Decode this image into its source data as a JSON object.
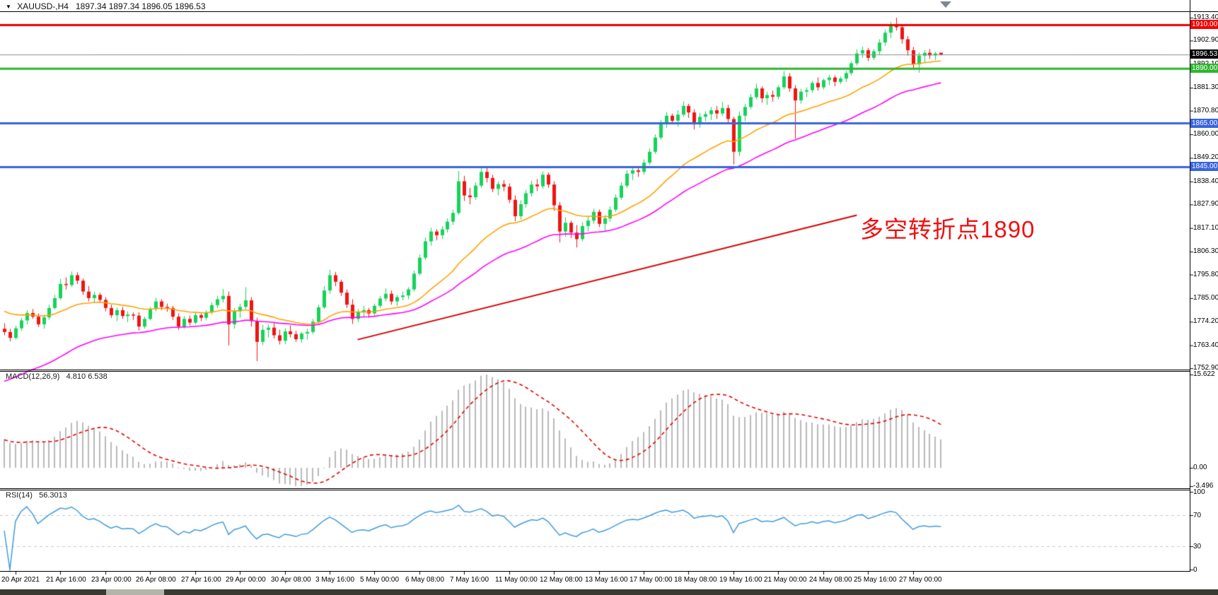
{
  "header": {
    "symbol": "XAUUSD-,H4",
    "ohlc": {
      "open": "1897.34",
      "high": "1897.34",
      "low": "1896.05",
      "close": "1896.53"
    },
    "ohlc_text": "1897.34 1897.34 1896.05 1896.53"
  },
  "colors": {
    "up_candle": "#16d35a",
    "down_candle": "#f01414",
    "ma_fast": "#ffa200",
    "ma_slow": "#ff00ff",
    "trendline": "#d40000",
    "hline_red": "#f00000",
    "hline_green": "#2eb52e",
    "hline_blue": "#3a64dd",
    "current_price_line": "#8a8a8a",
    "current_price_label_bg": "#000000",
    "macd_bars": "#b9b9b9",
    "macd_signal": "#e60000",
    "rsi_line": "#3f9bde",
    "rsi_levels": "#c8c8c8",
    "text": "#000000",
    "annotation": "#f01010"
  },
  "chart_data": {
    "type": "candlestick",
    "symbol": "XAUUSD-",
    "timeframe": "H4",
    "ohlc_format": [
      "open",
      "high",
      "low",
      "close"
    ],
    "ylim": [
      1752.3,
      1916.3
    ],
    "grid": false,
    "candles": [
      [
        1771.0,
        1773.5,
        1768.0,
        1769.5
      ],
      [
        1769.5,
        1771.0,
        1765.2,
        1766.8
      ],
      [
        1766.8,
        1772.4,
        1766.0,
        1771.2
      ],
      [
        1771.2,
        1776.0,
        1770.0,
        1774.8
      ],
      [
        1774.8,
        1779.5,
        1773.0,
        1778.2
      ],
      [
        1778.2,
        1780.0,
        1775.5,
        1776.5
      ],
      [
        1776.5,
        1778.0,
        1771.8,
        1773.0
      ],
      [
        1773.0,
        1777.5,
        1771.0,
        1776.2
      ],
      [
        1776.2,
        1782.0,
        1775.0,
        1780.5
      ],
      [
        1780.5,
        1786.5,
        1779.8,
        1785.0
      ],
      [
        1785.0,
        1793.8,
        1784.2,
        1791.5
      ],
      [
        1791.5,
        1794.5,
        1789.0,
        1791.0
      ],
      [
        1791.0,
        1797.2,
        1790.0,
        1795.5
      ],
      [
        1795.5,
        1796.8,
        1791.5,
        1793.0
      ],
      [
        1793.0,
        1794.0,
        1786.5,
        1788.0
      ],
      [
        1788.0,
        1790.5,
        1783.5,
        1785.0
      ],
      [
        1785.0,
        1788.0,
        1782.8,
        1786.5
      ],
      [
        1786.5,
        1787.5,
        1783.0,
        1784.2
      ],
      [
        1784.2,
        1785.5,
        1779.0,
        1780.5
      ],
      [
        1780.5,
        1782.0,
        1776.0,
        1777.2
      ],
      [
        1777.2,
        1780.8,
        1774.5,
        1779.5
      ],
      [
        1779.5,
        1781.0,
        1775.5,
        1776.8
      ],
      [
        1776.8,
        1779.0,
        1774.0,
        1777.5
      ],
      [
        1777.5,
        1778.5,
        1775.0,
        1777.0
      ],
      [
        1777.0,
        1778.5,
        1770.2,
        1772.0
      ],
      [
        1772.0,
        1776.5,
        1771.0,
        1775.5
      ],
      [
        1775.5,
        1781.0,
        1774.8,
        1780.0
      ],
      [
        1780.0,
        1785.2,
        1779.0,
        1783.5
      ],
      [
        1783.5,
        1784.5,
        1779.5,
        1781.0
      ],
      [
        1781.0,
        1782.5,
        1778.8,
        1780.5
      ],
      [
        1780.5,
        1781.5,
        1775.0,
        1776.5
      ],
      [
        1776.5,
        1778.0,
        1770.5,
        1772.0
      ],
      [
        1772.0,
        1776.8,
        1771.0,
        1775.5
      ],
      [
        1775.5,
        1777.0,
        1772.5,
        1773.8
      ],
      [
        1773.8,
        1778.5,
        1773.0,
        1777.2
      ],
      [
        1777.2,
        1778.0,
        1774.5,
        1776.0
      ],
      [
        1776.0,
        1779.5,
        1774.8,
        1778.5
      ],
      [
        1778.5,
        1783.0,
        1777.5,
        1781.8
      ],
      [
        1781.8,
        1786.0,
        1780.5,
        1784.5
      ],
      [
        1784.5,
        1789.2,
        1783.0,
        1786.0
      ],
      [
        1786.0,
        1788.0,
        1763.4,
        1773.0
      ],
      [
        1773.0,
        1780.5,
        1771.0,
        1779.0
      ],
      [
        1779.0,
        1782.5,
        1776.0,
        1781.0
      ],
      [
        1781.0,
        1790.0,
        1780.0,
        1784.0
      ],
      [
        1784.0,
        1785.5,
        1772.0,
        1774.5
      ],
      [
        1774.5,
        1776.0,
        1756.2,
        1765.0
      ],
      [
        1765.0,
        1772.8,
        1763.5,
        1770.5
      ],
      [
        1770.5,
        1773.0,
        1767.0,
        1771.5
      ],
      [
        1771.5,
        1774.0,
        1766.5,
        1768.0
      ],
      [
        1768.0,
        1770.5,
        1763.8,
        1765.5
      ],
      [
        1765.5,
        1771.2,
        1764.0,
        1769.8
      ],
      [
        1769.8,
        1772.5,
        1767.0,
        1768.5
      ],
      [
        1768.5,
        1770.0,
        1765.0,
        1766.2
      ],
      [
        1766.2,
        1769.5,
        1764.5,
        1768.8
      ],
      [
        1768.8,
        1771.0,
        1766.0,
        1769.5
      ],
      [
        1769.5,
        1775.5,
        1768.5,
        1774.2
      ],
      [
        1774.2,
        1782.0,
        1773.5,
        1780.8
      ],
      [
        1780.8,
        1790.5,
        1780.0,
        1788.5
      ],
      [
        1788.5,
        1798.0,
        1787.0,
        1795.5
      ],
      [
        1795.5,
        1797.0,
        1790.5,
        1792.5
      ],
      [
        1792.5,
        1793.5,
        1786.0,
        1787.5
      ],
      [
        1787.5,
        1789.0,
        1780.5,
        1782.0
      ],
      [
        1782.0,
        1784.5,
        1773.2,
        1775.5
      ],
      [
        1775.5,
        1780.0,
        1774.0,
        1778.8
      ],
      [
        1778.8,
        1781.5,
        1776.5,
        1779.5
      ],
      [
        1779.5,
        1780.5,
        1776.0,
        1778.0
      ],
      [
        1778.0,
        1782.5,
        1777.0,
        1781.5
      ],
      [
        1781.5,
        1786.0,
        1780.5,
        1784.8
      ],
      [
        1784.8,
        1789.5,
        1783.5,
        1787.0
      ],
      [
        1787.0,
        1788.5,
        1782.0,
        1783.5
      ],
      [
        1783.5,
        1786.5,
        1781.5,
        1785.5
      ],
      [
        1785.5,
        1788.0,
        1784.0,
        1786.2
      ],
      [
        1786.2,
        1790.0,
        1784.5,
        1789.0
      ],
      [
        1789.0,
        1797.5,
        1788.0,
        1796.2
      ],
      [
        1796.2,
        1805.0,
        1795.5,
        1803.5
      ],
      [
        1803.5,
        1812.8,
        1802.5,
        1811.0
      ],
      [
        1811.0,
        1817.2,
        1809.0,
        1815.5
      ],
      [
        1815.5,
        1816.5,
        1811.5,
        1813.8
      ],
      [
        1813.8,
        1818.0,
        1812.0,
        1816.5
      ],
      [
        1816.5,
        1821.5,
        1815.0,
        1820.0
      ],
      [
        1820.0,
        1825.5,
        1818.5,
        1824.0
      ],
      [
        1824.0,
        1843.2,
        1823.0,
        1838.5
      ],
      [
        1838.5,
        1841.0,
        1829.5,
        1832.0
      ],
      [
        1832.0,
        1835.5,
        1828.0,
        1831.2
      ],
      [
        1831.2,
        1838.0,
        1830.0,
        1836.5
      ],
      [
        1836.5,
        1845.0,
        1835.5,
        1842.8
      ],
      [
        1842.8,
        1844.5,
        1838.0,
        1840.0
      ],
      [
        1840.0,
        1841.5,
        1833.5,
        1835.0
      ],
      [
        1835.0,
        1838.5,
        1832.0,
        1837.2
      ],
      [
        1837.2,
        1839.0,
        1834.0,
        1836.0
      ],
      [
        1836.0,
        1837.5,
        1828.5,
        1830.0
      ],
      [
        1830.0,
        1832.0,
        1820.2,
        1822.5
      ],
      [
        1822.5,
        1829.8,
        1821.0,
        1828.0
      ],
      [
        1828.0,
        1834.5,
        1826.5,
        1833.0
      ],
      [
        1833.0,
        1838.8,
        1831.5,
        1837.0
      ],
      [
        1837.0,
        1839.5,
        1834.0,
        1836.2
      ],
      [
        1836.2,
        1843.0,
        1835.0,
        1841.5
      ],
      [
        1841.5,
        1842.5,
        1835.5,
        1837.0
      ],
      [
        1837.0,
        1838.5,
        1825.0,
        1827.5
      ],
      [
        1827.5,
        1829.0,
        1810.5,
        1815.5
      ],
      [
        1815.5,
        1822.0,
        1813.0,
        1819.5
      ],
      [
        1819.5,
        1820.5,
        1812.5,
        1815.0
      ],
      [
        1815.0,
        1818.5,
        1808.2,
        1812.0
      ],
      [
        1812.0,
        1819.8,
        1811.0,
        1818.0
      ],
      [
        1818.0,
        1822.5,
        1815.5,
        1820.5
      ],
      [
        1820.5,
        1826.0,
        1819.0,
        1824.5
      ],
      [
        1824.5,
        1825.5,
        1817.5,
        1819.0
      ],
      [
        1819.0,
        1823.0,
        1816.0,
        1821.5
      ],
      [
        1821.5,
        1827.0,
        1820.0,
        1825.5
      ],
      [
        1825.5,
        1832.5,
        1824.5,
        1831.0
      ],
      [
        1831.0,
        1838.0,
        1830.0,
        1836.5
      ],
      [
        1836.5,
        1843.5,
        1835.5,
        1842.0
      ],
      [
        1842.0,
        1845.2,
        1839.0,
        1843.5
      ],
      [
        1843.5,
        1844.5,
        1840.5,
        1842.8
      ],
      [
        1842.8,
        1848.5,
        1841.5,
        1847.0
      ],
      [
        1847.0,
        1853.5,
        1846.0,
        1852.0
      ],
      [
        1852.0,
        1860.0,
        1851.0,
        1858.5
      ],
      [
        1858.5,
        1866.5,
        1857.5,
        1865.0
      ],
      [
        1865.0,
        1870.2,
        1863.0,
        1868.5
      ],
      [
        1868.5,
        1869.5,
        1864.5,
        1866.2
      ],
      [
        1866.2,
        1871.0,
        1863.5,
        1869.0
      ],
      [
        1869.0,
        1875.0,
        1868.0,
        1873.0
      ],
      [
        1873.0,
        1874.0,
        1867.5,
        1870.0
      ],
      [
        1870.0,
        1871.5,
        1862.2,
        1864.5
      ],
      [
        1864.5,
        1869.8,
        1863.0,
        1868.0
      ],
      [
        1868.0,
        1870.5,
        1866.0,
        1869.2
      ],
      [
        1869.2,
        1872.5,
        1866.5,
        1871.0
      ],
      [
        1871.0,
        1873.0,
        1867.0,
        1869.5
      ],
      [
        1869.5,
        1874.8,
        1868.5,
        1872.0
      ],
      [
        1872.0,
        1873.5,
        1865.5,
        1867.0
      ],
      [
        1867.0,
        1868.0,
        1846.2,
        1852.0
      ],
      [
        1852.0,
        1870.5,
        1850.0,
        1868.5
      ],
      [
        1868.5,
        1874.0,
        1866.0,
        1872.5
      ],
      [
        1872.5,
        1878.5,
        1871.5,
        1877.0
      ],
      [
        1877.0,
        1883.2,
        1876.0,
        1881.0
      ],
      [
        1881.0,
        1882.0,
        1874.5,
        1876.5
      ],
      [
        1876.5,
        1879.5,
        1873.5,
        1878.0
      ],
      [
        1878.0,
        1880.0,
        1875.0,
        1877.2
      ],
      [
        1877.2,
        1882.5,
        1876.0,
        1881.5
      ],
      [
        1881.5,
        1889.0,
        1880.5,
        1886.5
      ],
      [
        1886.5,
        1888.0,
        1879.5,
        1881.0
      ],
      [
        1881.0,
        1882.5,
        1858.0,
        1875.5
      ],
      [
        1875.5,
        1880.8,
        1874.0,
        1879.5
      ],
      [
        1879.5,
        1881.5,
        1877.0,
        1880.2
      ],
      [
        1880.2,
        1884.5,
        1879.0,
        1883.5
      ],
      [
        1883.5,
        1886.0,
        1880.0,
        1881.5
      ],
      [
        1881.5,
        1885.5,
        1880.5,
        1884.8
      ],
      [
        1884.8,
        1887.2,
        1882.5,
        1886.0
      ],
      [
        1886.0,
        1887.0,
        1882.0,
        1884.0
      ],
      [
        1884.0,
        1886.5,
        1883.0,
        1885.5
      ],
      [
        1885.5,
        1889.0,
        1884.0,
        1888.0
      ],
      [
        1888.0,
        1893.5,
        1887.0,
        1892.5
      ],
      [
        1892.5,
        1898.8,
        1891.5,
        1897.0
      ],
      [
        1897.0,
        1900.2,
        1895.0,
        1898.5
      ],
      [
        1898.5,
        1899.5,
        1893.5,
        1895.0
      ],
      [
        1895.0,
        1899.0,
        1894.0,
        1898.0
      ],
      [
        1898.0,
        1903.5,
        1896.5,
        1902.0
      ],
      [
        1902.0,
        1908.0,
        1900.5,
        1906.5
      ],
      [
        1906.5,
        1911.5,
        1904.0,
        1910.0
      ],
      [
        1910.0,
        1913.4,
        1907.5,
        1909.0
      ],
      [
        1909.0,
        1910.5,
        1901.5,
        1903.5
      ],
      [
        1903.5,
        1905.0,
        1896.0,
        1898.5
      ],
      [
        1898.5,
        1900.0,
        1889.5,
        1892.0
      ],
      [
        1892.0,
        1897.5,
        1888.2,
        1896.0
      ],
      [
        1896.0,
        1898.5,
        1893.0,
        1897.3
      ],
      [
        1897.3,
        1899.0,
        1894.5,
        1896.1
      ],
      [
        1896.1,
        1897.8,
        1894.0,
        1897.0
      ],
      [
        1897.34,
        1897.34,
        1896.05,
        1896.53
      ]
    ],
    "price_ticks": [
      {
        "label": "1913.40",
        "price": 1913.4
      },
      {
        "label": "1902.90",
        "price": 1902.9
      },
      {
        "label": "1892.10",
        "price": 1892.1
      },
      {
        "label": "1881.30",
        "price": 1881.3
      },
      {
        "label": "1870.80",
        "price": 1870.8
      },
      {
        "label": "1860.00",
        "price": 1860.0
      },
      {
        "label": "1849.20",
        "price": 1849.2
      },
      {
        "label": "1838.40",
        "price": 1838.4
      },
      {
        "label": "1827.90",
        "price": 1827.9
      },
      {
        "label": "1817.10",
        "price": 1817.1
      },
      {
        "label": "1806.30",
        "price": 1806.3
      },
      {
        "label": "1795.80",
        "price": 1795.8
      },
      {
        "label": "1785.00",
        "price": 1785.0
      },
      {
        "label": "1774.20",
        "price": 1774.2
      },
      {
        "label": "1763.40",
        "price": 1763.4
      },
      {
        "label": "1752.90",
        "price": 1752.9
      }
    ],
    "time_labels": [
      {
        "text": "20 Apr 2021",
        "candle": 2
      },
      {
        "text": "21 Apr 16:00",
        "candle": 10
      },
      {
        "text": "23 Apr 00:00",
        "candle": 18
      },
      {
        "text": "26 Apr 08:00",
        "candle": 26
      },
      {
        "text": "27 Apr 16:00",
        "candle": 34
      },
      {
        "text": "29 Apr 00:00",
        "candle": 42
      },
      {
        "text": "30 Apr 08:00",
        "candle": 50
      },
      {
        "text": "3 May 16:00",
        "candle": 58
      },
      {
        "text": "5 May 00:00",
        "candle": 66
      },
      {
        "text": "6 May 08:00",
        "candle": 74
      },
      {
        "text": "7 May 16:00",
        "candle": 82
      },
      {
        "text": "11 May 00:00",
        "candle": 90
      },
      {
        "text": "12 May 08:00",
        "candle": 98
      },
      {
        "text": "13 May 16:00",
        "candle": 106
      },
      {
        "text": "17 May 00:00",
        "candle": 114
      },
      {
        "text": "18 May 08:00",
        "candle": 122
      },
      {
        "text": "19 May 16:00",
        "candle": 130
      },
      {
        "text": "21 May 00:00",
        "candle": 138
      },
      {
        "text": "24 May 08:00",
        "candle": 146
      },
      {
        "text": "25 May 16:00",
        "candle": 154
      },
      {
        "text": "27 May 00:00",
        "candle": 162
      }
    ],
    "moving_averages": [
      {
        "type": "EMA",
        "period": 24,
        "color_key": "ma_fast",
        "seed": 1779
      },
      {
        "type": "EMA",
        "period": 45,
        "color_key": "ma_slow",
        "seed": 1747
      }
    ],
    "trendline": {
      "from_candle": 63,
      "from_price": 1766.0,
      "to_candle": 152,
      "to_price": 1823.0
    },
    "horizontal_lines": [
      {
        "price": 1910.0,
        "label": "1910.00",
        "color_key": "hline_red"
      },
      {
        "price": 1890.0,
        "label": "1890.00",
        "color_key": "hline_green"
      },
      {
        "price": 1865.0,
        "label": "1865.00",
        "color_key": "hline_blue"
      },
      {
        "price": 1845.0,
        "label": "1845.00",
        "color_key": "hline_blue"
      }
    ],
    "current_price": {
      "value": 1896.53,
      "label": "1896.53"
    },
    "macd": {
      "name": "MACD(12,26,9)",
      "values": "4.810 6.538",
      "fast": 12,
      "slow": 26,
      "signal": 9,
      "axis_labels": {
        "max": "15.622",
        "zero": "0.00",
        "min": "-3.496"
      }
    },
    "rsi": {
      "name": "RSI(14)",
      "value": "56.3013",
      "period": 14,
      "levels": [
        70,
        30
      ],
      "axis_labels": [
        {
          "text": "100",
          "value": 100
        },
        {
          "text": "70",
          "value": 70
        },
        {
          "text": "30",
          "value": 30
        },
        {
          "text": "0",
          "value": 0
        }
      ]
    },
    "annotation": {
      "text": "多空转折点1890"
    }
  }
}
